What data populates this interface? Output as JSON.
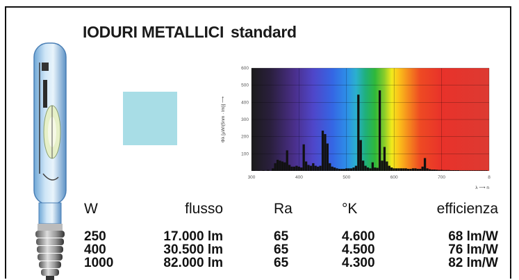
{
  "title": {
    "main": "IODURI METALLICI",
    "sub": "standard"
  },
  "swatch_color": "#a8dde6",
  "table": {
    "headers": [
      "W",
      "flusso",
      "Ra",
      "°K",
      "efficienza"
    ],
    "rows": [
      [
        "250",
        "17.000 lm",
        "65",
        "4.600",
        "68 lm/W"
      ],
      [
        "400",
        "30.500 lm",
        "65",
        "4.500",
        "76 lm/W"
      ],
      [
        "1000",
        "82.000 lm",
        "65",
        "4.300",
        "82 lm/W"
      ]
    ]
  },
  "chart_data": {
    "type": "bar",
    "ylabel": "Φλ [µW/(5nm · lm)] ⟶",
    "xlabel": "λ ⟶ n",
    "xlim": [
      300,
      800
    ],
    "ylim": [
      0,
      600
    ],
    "xticks": [
      "300",
      "400",
      "500",
      "600",
      "700",
      "8"
    ],
    "yticks": [
      "100",
      "200",
      "300",
      "400",
      "500",
      "600"
    ],
    "grid": true,
    "x": [
      305,
      315,
      325,
      335,
      345,
      350,
      355,
      360,
      365,
      370,
      375,
      380,
      385,
      390,
      395,
      400,
      405,
      410,
      415,
      420,
      425,
      430,
      435,
      440,
      445,
      450,
      455,
      460,
      465,
      470,
      475,
      480,
      485,
      490,
      495,
      500,
      505,
      510,
      515,
      520,
      525,
      530,
      535,
      540,
      545,
      550,
      555,
      560,
      565,
      570,
      575,
      580,
      585,
      590,
      595,
      600,
      605,
      610,
      615,
      620,
      625,
      630,
      635,
      640,
      645,
      650,
      655,
      660,
      665,
      670,
      675,
      680,
      685,
      690,
      695,
      700,
      705,
      710,
      715,
      720,
      725,
      730,
      735,
      740,
      745,
      750,
      755,
      760,
      765,
      770,
      775,
      780,
      785,
      790,
      795
    ],
    "values": [
      3,
      3,
      4,
      6,
      15,
      45,
      65,
      60,
      55,
      50,
      120,
      35,
      25,
      25,
      30,
      25,
      20,
      155,
      55,
      35,
      30,
      45,
      30,
      25,
      30,
      235,
      215,
      160,
      45,
      25,
      20,
      15,
      12,
      12,
      12,
      15,
      15,
      15,
      20,
      30,
      445,
      180,
      60,
      30,
      20,
      15,
      50,
      20,
      18,
      470,
      60,
      140,
      55,
      30,
      20,
      15,
      15,
      15,
      15,
      15,
      15,
      12,
      12,
      15,
      15,
      12,
      12,
      25,
      75,
      15,
      10,
      8,
      8,
      7,
      6,
      6,
      5,
      5,
      5,
      4,
      4,
      4,
      4,
      3,
      3,
      3,
      3,
      3,
      3,
      3,
      3,
      3,
      3,
      3,
      3
    ]
  }
}
